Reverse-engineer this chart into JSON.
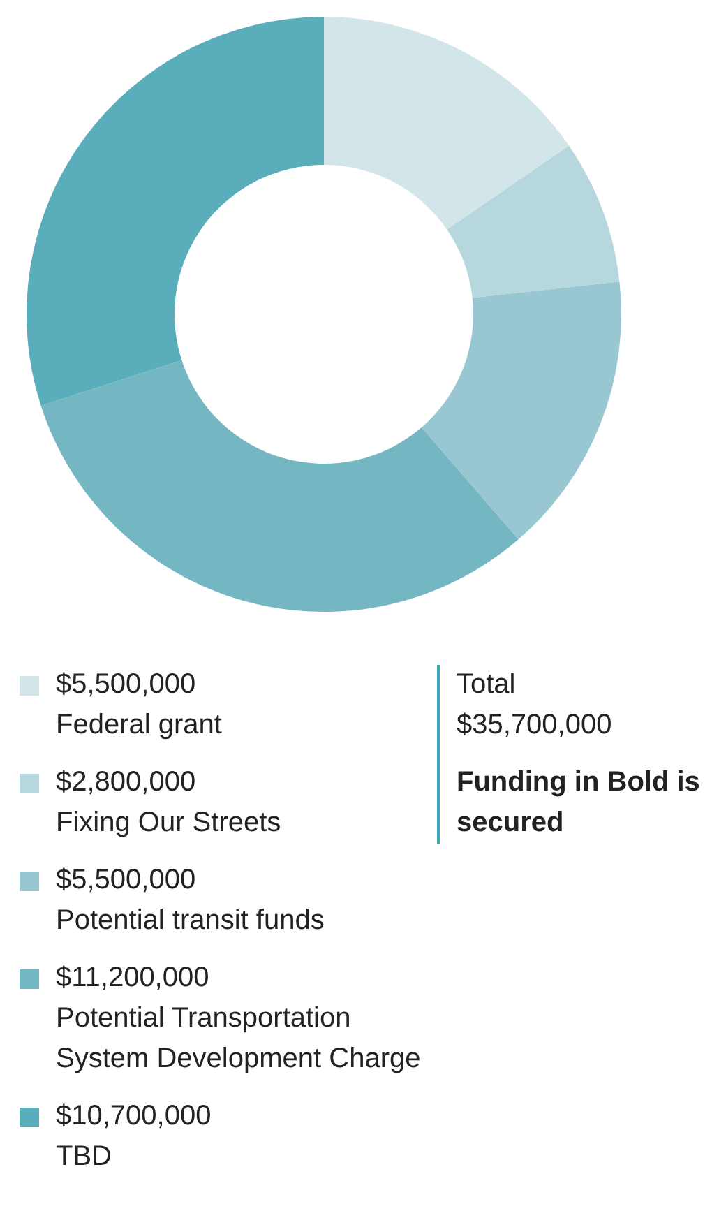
{
  "chart_data": {
    "type": "donut",
    "categories": [
      "Federal grant",
      "Fixing Our Streets",
      "Potential transit funds",
      "Potential Transportation System Development Charge",
      "TBD"
    ],
    "values": [
      5500000,
      2800000,
      5500000,
      11200000,
      10700000
    ],
    "value_labels": [
      "$5,500,000",
      "$2,800,000",
      "$5,500,000",
      "$11,200,000",
      "$10,700,000"
    ],
    "colors": [
      "#d2e5e8",
      "#b6d7dd",
      "#99c7d1",
      "#75b6c3",
      "#5aadbb"
    ],
    "legend": "bottom",
    "annotations": [
      "Total",
      "$35,700,000",
      "Funding in Bold is secured"
    ]
  }
}
